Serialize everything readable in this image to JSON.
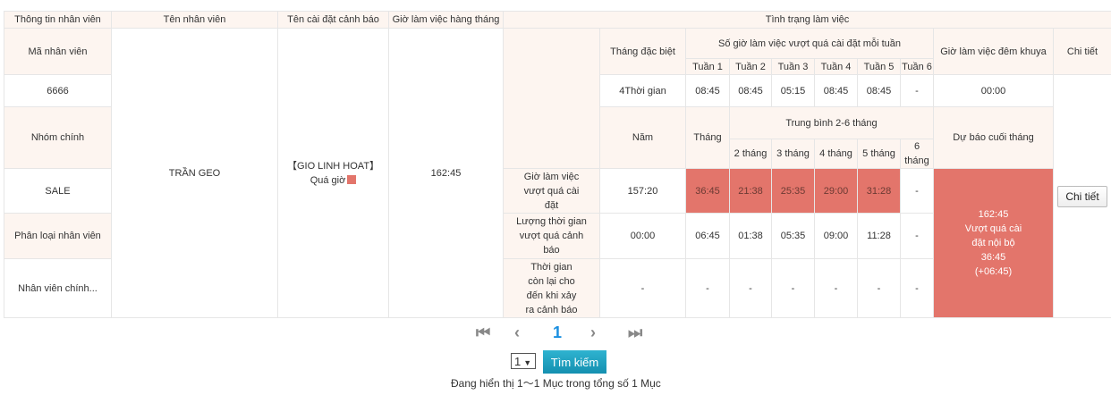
{
  "headers": {
    "info": "Thông tin nhân viên",
    "name": "Tên nhân viên",
    "alert_setting": "Tên cài đặt cảnh báo",
    "monthly_hours": "Giờ làm việc hàng tháng",
    "status": "Tình trạng làm việc",
    "special_month": "Tháng đặc biệt",
    "weekly_over": "Số giờ làm việc vượt quá cài đặt mỗi tuần",
    "weeks": [
      "Tuần 1",
      "Tuần 2",
      "Tuần 3",
      "Tuần 4",
      "Tuần 5",
      "Tuần 6"
    ],
    "night": "Giờ làm việc đêm khuya",
    "detail": "Chi tiết",
    "year": "Năm",
    "month": "Tháng",
    "avg": "Trung bình 2-6 tháng",
    "months": [
      "2 tháng",
      "3 tháng",
      "4 tháng",
      "5 tháng",
      "6 tháng"
    ],
    "forecast": "Dự báo cuối tháng"
  },
  "employee": {
    "id_label": "Mã nhân viên",
    "id": "6666",
    "group_label": "Nhóm chính",
    "group": "SALE",
    "class_label": "Phân loại nhân viên",
    "class": "Nhân viên chính...",
    "name": "TRẦN GEO",
    "alert_name": "【GIO LINH HOAT】",
    "alert_type": "Quá giờ",
    "monthly_hours": "162:45"
  },
  "special": {
    "value": "4Thời gian",
    "weeks": [
      "08:45",
      "08:45",
      "05:15",
      "08:45",
      "08:45",
      "-"
    ],
    "night": "00:00"
  },
  "rows": [
    {
      "label": "Giờ làm việc vượt quá cài đặt",
      "year": "157:20",
      "values": [
        "36:45",
        "21:38",
        "25:35",
        "29:00",
        "31:28",
        "-"
      ]
    },
    {
      "label": "Lượng thời gian vượt quá cảnh báo",
      "year": "00:00",
      "values": [
        "06:45",
        "01:38",
        "05:35",
        "09:00",
        "11:28",
        "-"
      ]
    },
    {
      "label": "Thời gian còn lại cho đến khi xảy ra cảnh báo",
      "year": "-",
      "values": [
        "-",
        "-",
        "-",
        "-",
        "-",
        "-"
      ]
    }
  ],
  "forecast": [
    "162:45",
    "Vượt quá cài",
    "đặt nội bộ",
    "36:45",
    "(+06:45)"
  ],
  "detail_button": "Chi tiết",
  "colors": {
    "alert": "#e3756b",
    "header_bg": "#fdf5f0",
    "accent": "#1a8fe0"
  },
  "pager": {
    "current": "1",
    "page_select": "1",
    "search_button": "Tìm kiếm",
    "summary": "Đang hiển thị 1〜1 Mục trong tổng số 1 Mục"
  }
}
